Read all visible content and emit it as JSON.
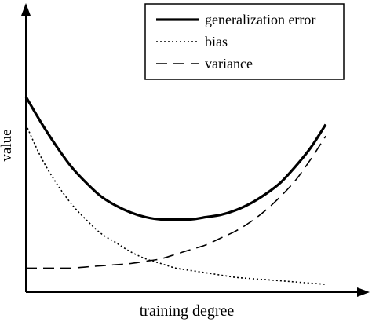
{
  "chart_data": {
    "type": "line",
    "title": "",
    "xlabel": "training degree",
    "ylabel": "value",
    "xlim": [
      0,
      1
    ],
    "ylim": [
      0,
      1
    ],
    "axis_ticks": false,
    "grid": false,
    "legend_position": "top-right",
    "series": [
      {
        "name": "generalization error",
        "style": "solid",
        "color": "#000000",
        "x": [
          0.0,
          0.05,
          0.1,
          0.15,
          0.2,
          0.25,
          0.3,
          0.35,
          0.4,
          0.45,
          0.5,
          0.55,
          0.6,
          0.65,
          0.7,
          0.75,
          0.8,
          0.85,
          0.9,
          0.95,
          1.0
        ],
        "y": [
          0.82,
          0.71,
          0.61,
          0.52,
          0.45,
          0.39,
          0.35,
          0.32,
          0.3,
          0.29,
          0.29,
          0.29,
          0.3,
          0.31,
          0.33,
          0.36,
          0.4,
          0.45,
          0.52,
          0.6,
          0.7
        ]
      },
      {
        "name": "bias",
        "style": "dotted",
        "color": "#000000",
        "x": [
          0.0,
          0.05,
          0.1,
          0.15,
          0.2,
          0.25,
          0.3,
          0.35,
          0.4,
          0.45,
          0.5,
          0.55,
          0.6,
          0.65,
          0.7,
          0.75,
          0.8,
          0.85,
          0.9,
          0.95,
          1.0
        ],
        "y": [
          0.7,
          0.56,
          0.45,
          0.36,
          0.29,
          0.23,
          0.19,
          0.15,
          0.12,
          0.1,
          0.08,
          0.07,
          0.06,
          0.05,
          0.04,
          0.035,
          0.03,
          0.025,
          0.02,
          0.015,
          0.01
        ]
      },
      {
        "name": "variance",
        "style": "dashed",
        "color": "#000000",
        "x": [
          0.0,
          0.05,
          0.1,
          0.15,
          0.2,
          0.25,
          0.3,
          0.35,
          0.4,
          0.45,
          0.5,
          0.55,
          0.6,
          0.65,
          0.7,
          0.75,
          0.8,
          0.85,
          0.9,
          0.95,
          1.0
        ],
        "y": [
          0.08,
          0.08,
          0.08,
          0.08,
          0.085,
          0.09,
          0.095,
          0.1,
          0.11,
          0.12,
          0.14,
          0.16,
          0.18,
          0.21,
          0.24,
          0.28,
          0.33,
          0.39,
          0.46,
          0.55,
          0.65
        ]
      }
    ]
  }
}
